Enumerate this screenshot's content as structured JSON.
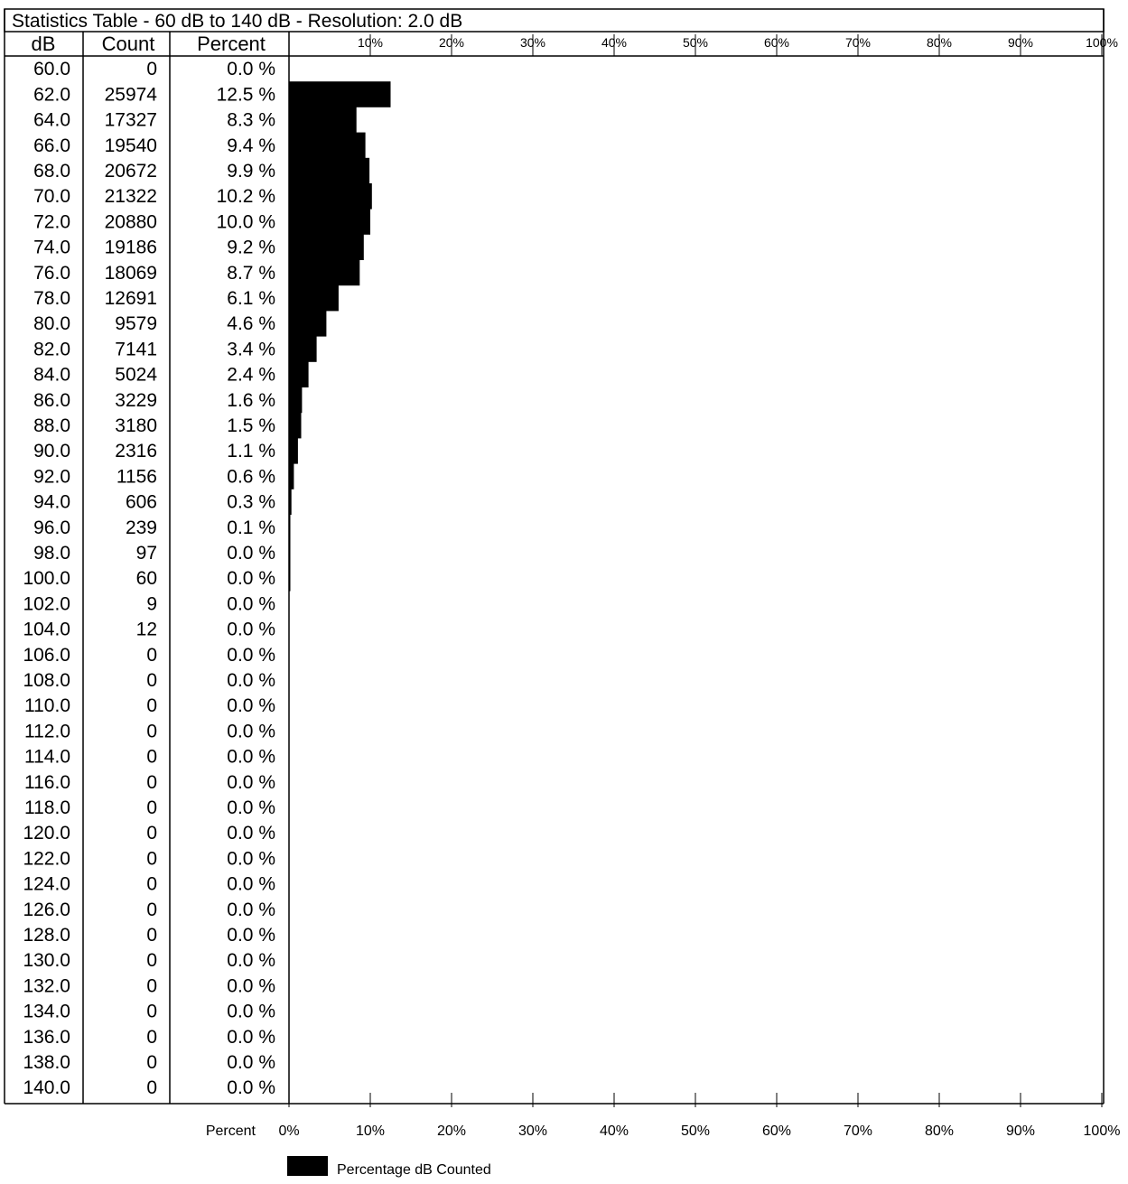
{
  "table": {
    "title": "Statistics Table - 60 dB to 140 dB - Resolution: 2.0 dB",
    "headers": {
      "db": "dB",
      "count": "Count",
      "percent": "Percent"
    }
  },
  "chart_data": {
    "type": "bar",
    "orientation": "horizontal",
    "categories": [
      "60.0",
      "62.0",
      "64.0",
      "66.0",
      "68.0",
      "70.0",
      "72.0",
      "74.0",
      "76.0",
      "78.0",
      "80.0",
      "82.0",
      "84.0",
      "86.0",
      "88.0",
      "90.0",
      "92.0",
      "94.0",
      "96.0",
      "98.0",
      "100.0",
      "102.0",
      "104.0",
      "106.0",
      "108.0",
      "110.0",
      "112.0",
      "114.0",
      "116.0",
      "118.0",
      "120.0",
      "122.0",
      "124.0",
      "126.0",
      "128.0",
      "130.0",
      "132.0",
      "134.0",
      "136.0",
      "138.0",
      "140.0"
    ],
    "counts": [
      "0",
      "25974",
      "17327",
      "19540",
      "20672",
      "21322",
      "20880",
      "19186",
      "18069",
      "12691",
      "9579",
      "7141",
      "5024",
      "3229",
      "3180",
      "2316",
      "1156",
      "606",
      "239",
      "97",
      "60",
      "9",
      "12",
      "0",
      "0",
      "0",
      "0",
      "0",
      "0",
      "0",
      "0",
      "0",
      "0",
      "0",
      "0",
      "0",
      "0",
      "0",
      "0",
      "0",
      "0"
    ],
    "percent_labels": [
      "0.0 %",
      "12.5 %",
      "8.3 %",
      "9.4 %",
      "9.9 %",
      "10.2 %",
      "10.0 %",
      "9.2 %",
      "8.7 %",
      "6.1 %",
      "4.6 %",
      "3.4 %",
      "2.4 %",
      "1.6 %",
      "1.5 %",
      "1.1 %",
      "0.6 %",
      "0.3 %",
      "0.1 %",
      "0.0 %",
      "0.0 %",
      "0.0 %",
      "0.0 %",
      "0.0 %",
      "0.0 %",
      "0.0 %",
      "0.0 %",
      "0.0 %",
      "0.0 %",
      "0.0 %",
      "0.0 %",
      "0.0 %",
      "0.0 %",
      "0.0 %",
      "0.0 %",
      "0.0 %",
      "0.0 %",
      "0.0 %",
      "0.0 %",
      "0.0 %",
      "0.0 %"
    ],
    "values": [
      0,
      12.5,
      8.3,
      9.4,
      9.9,
      10.2,
      10.0,
      9.2,
      8.7,
      6.1,
      4.6,
      3.4,
      2.4,
      1.6,
      1.5,
      1.1,
      0.6,
      0.3,
      0.1,
      0.05,
      0.03,
      0,
      0,
      0,
      0,
      0,
      0,
      0,
      0,
      0,
      0,
      0,
      0,
      0,
      0,
      0,
      0,
      0,
      0,
      0,
      0
    ],
    "series": [
      {
        "name": "Percentage dB Counted",
        "values_ref": "values"
      }
    ],
    "xlim": [
      0,
      100
    ],
    "top_ticks": [
      "10%",
      "20%",
      "30%",
      "40%",
      "50%",
      "60%",
      "70%",
      "80%",
      "90%",
      "100%"
    ],
    "bottom_ticks": [
      "0%",
      "10%",
      "20%",
      "30%",
      "40%",
      "50%",
      "60%",
      "70%",
      "80%",
      "90%",
      "100%"
    ],
    "xlabel": "Percent",
    "legend": {
      "label": "Percentage dB Counted",
      "position": "bottom"
    },
    "bar_color": "#000000",
    "grid": false
  }
}
